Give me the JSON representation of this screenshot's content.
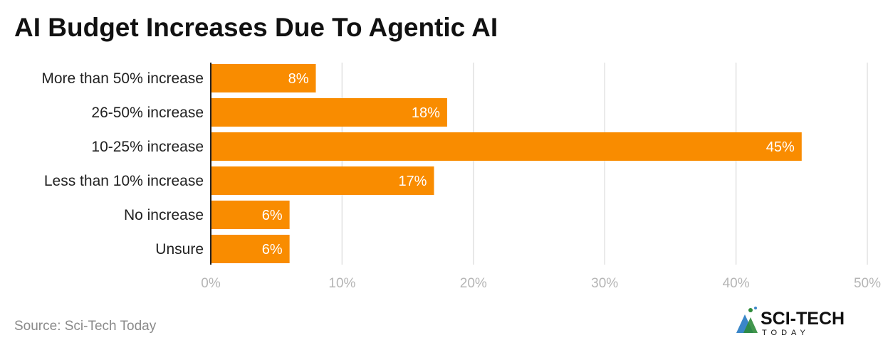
{
  "chart_data": {
    "type": "bar",
    "orientation": "horizontal",
    "title": "AI Budget Increases Due To Agentic AI",
    "categories": [
      "More than 50% increase",
      "26-50% increase",
      "10-25% increase",
      "Less than 10% increase",
      "No increase",
      "Unsure"
    ],
    "values": [
      8,
      18,
      45,
      17,
      6,
      6
    ],
    "data_labels": [
      "8%",
      "18%",
      "45%",
      "17%",
      "6%",
      "6%"
    ],
    "xlim": [
      0,
      50
    ],
    "xticks": [
      0,
      10,
      20,
      30,
      40,
      50
    ],
    "xtick_labels": [
      "0%",
      "10%",
      "20%",
      "30%",
      "40%",
      "50%"
    ],
    "grid": true,
    "bar_color": "#F98C00"
  },
  "source": "Source: Sci-Tech Today",
  "logo": {
    "line1": "SCI-TECH",
    "line2": "TODAY"
  }
}
